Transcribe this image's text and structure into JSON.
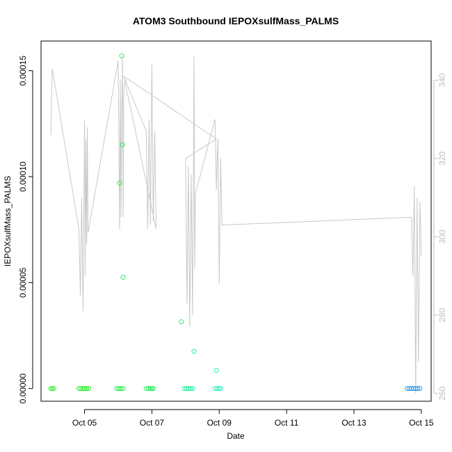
{
  "chart_data": {
    "type": "scatter",
    "title": "ATOM3 Southbound IEPOXsulfMass_PALMS",
    "xlabel": "Date",
    "ylabel": "IEPOXsulfMass_PALMS",
    "x_type": "date",
    "xlim": [
      "2017-10-03T17:00",
      "2017-10-15T07:00"
    ],
    "ylim": [
      -6e-06,
      0.000164
    ],
    "y2lim": [
      258,
      350
    ],
    "x_ticks": [
      {
        "value": "2017-10-05",
        "label": "Oct 05"
      },
      {
        "value": "2017-10-07",
        "label": "Oct 07"
      },
      {
        "value": "2017-10-09",
        "label": "Oct 09"
      },
      {
        "value": "2017-10-11",
        "label": "Oct 11"
      },
      {
        "value": "2017-10-13",
        "label": "Oct 13"
      },
      {
        "value": "2017-10-15",
        "label": "Oct 15"
      }
    ],
    "y_ticks": [
      {
        "value": 0.0,
        "label": "0.00000"
      },
      {
        "value": 5e-05,
        "label": "0.00005"
      },
      {
        "value": 0.0001,
        "label": "0.00010"
      },
      {
        "value": 0.00015,
        "label": "0.00015"
      }
    ],
    "y2_ticks": [
      {
        "value": 260,
        "label": "260"
      },
      {
        "value": 280,
        "label": "280"
      },
      {
        "value": 300,
        "label": "300"
      },
      {
        "value": 320,
        "label": "320"
      },
      {
        "value": 340,
        "label": "340"
      }
    ],
    "grid": false,
    "legend": "none",
    "colors": {
      "secondary_line": "#c8c8c8",
      "right_axis": "#bebebe",
      "axis": "#000000"
    },
    "points": [
      {
        "x": "2017-10-04T00:00",
        "y": 0.0,
        "color": "#33ee33"
      },
      {
        "x": "2017-10-04T01:00",
        "y": 0.0,
        "color": "#33ee33"
      },
      {
        "x": "2017-10-04T02:00",
        "y": 0.0,
        "color": "#33ee33"
      },
      {
        "x": "2017-10-04T20:00",
        "y": 0.0,
        "color": "#22ee22"
      },
      {
        "x": "2017-10-04T21:30",
        "y": 0.0,
        "color": "#22ee22"
      },
      {
        "x": "2017-10-04T23:00",
        "y": 0.0,
        "color": "#22ee22"
      },
      {
        "x": "2017-10-05T00:00",
        "y": 0.0,
        "color": "#22ee22"
      },
      {
        "x": "2017-10-05T01:30",
        "y": 0.0,
        "color": "#22ee22"
      },
      {
        "x": "2017-10-05T03:00",
        "y": 0.0,
        "color": "#22ee22"
      },
      {
        "x": "2017-10-05T23:00",
        "y": 0.0,
        "color": "#22ee44"
      },
      {
        "x": "2017-10-06T00:30",
        "y": 0.0,
        "color": "#22ee44"
      },
      {
        "x": "2017-10-06T02:00",
        "y": 0.0,
        "color": "#22ee44"
      },
      {
        "x": "2017-10-06T03:30",
        "y": 0.0,
        "color": "#22ee44"
      },
      {
        "x": "2017-10-06T01:00",
        "y": 9.7e-05,
        "color": "#22ee44"
      },
      {
        "x": "2017-10-06T02:30",
        "y": 0.000157,
        "color": "#22ee44"
      },
      {
        "x": "2017-10-06T03:00",
        "y": 0.000115,
        "color": "#22ee55"
      },
      {
        "x": "2017-10-06T03:30",
        "y": 5.25e-05,
        "color": "#22ee55"
      },
      {
        "x": "2017-10-06T20:00",
        "y": 0.0,
        "color": "#22ee55"
      },
      {
        "x": "2017-10-06T21:30",
        "y": 0.0,
        "color": "#22ee55"
      },
      {
        "x": "2017-10-06T23:00",
        "y": 0.0,
        "color": "#22ee55"
      },
      {
        "x": "2017-10-07T00:00",
        "y": 0.0,
        "color": "#22ee55"
      },
      {
        "x": "2017-10-07T21:00",
        "y": 3.15e-05,
        "color": "#22ee66"
      },
      {
        "x": "2017-10-07T01:00",
        "y": 0.0,
        "color": "#22ee55"
      },
      {
        "x": "2017-10-07T23:00",
        "y": 0.0,
        "color": "#22ee99"
      },
      {
        "x": "2017-10-08T00:30",
        "y": 0.0,
        "color": "#22ee99"
      },
      {
        "x": "2017-10-08T02:00",
        "y": 0.0,
        "color": "#22ee99"
      },
      {
        "x": "2017-10-08T03:30",
        "y": 0.0,
        "color": "#22ee99"
      },
      {
        "x": "2017-10-08T05:00",
        "y": 0.0,
        "color": "#22ee99"
      },
      {
        "x": "2017-10-08T06:00",
        "y": 1.75e-05,
        "color": "#22eeaa"
      },
      {
        "x": "2017-10-08T21:00",
        "y": 0.0,
        "color": "#22eebb"
      },
      {
        "x": "2017-10-08T22:30",
        "y": 0.0,
        "color": "#22eebb"
      },
      {
        "x": "2017-10-09T00:00",
        "y": 0.0,
        "color": "#22eebb"
      },
      {
        "x": "2017-10-09T01:00",
        "y": 0.0,
        "color": "#22eebb"
      },
      {
        "x": "2017-10-08T22:00",
        "y": 8.5e-06,
        "color": "#22eebb"
      },
      {
        "x": "2017-10-14T14:00",
        "y": 0.0,
        "color": "#2299ee"
      },
      {
        "x": "2017-10-14T15:30",
        "y": 0.0,
        "color": "#2299ee"
      },
      {
        "x": "2017-10-14T17:00",
        "y": 0.0,
        "color": "#2299ee"
      },
      {
        "x": "2017-10-14T18:30",
        "y": 0.0,
        "color": "#2299ee"
      },
      {
        "x": "2017-10-14T20:00",
        "y": 0.0,
        "color": "#2299ee"
      },
      {
        "x": "2017-10-14T21:30",
        "y": 0.0,
        "color": "#2299ee"
      },
      {
        "x": "2017-10-14T23:00",
        "y": 0.0,
        "color": "#2299ee"
      }
    ],
    "secondary_line": [
      [
        "2017-10-04T00:00",
        326
      ],
      [
        "2017-10-04T01:00",
        343
      ],
      [
        "2017-10-04T20:00",
        302
      ],
      [
        "2017-10-04T21:00",
        285
      ],
      [
        "2017-10-04T22:00",
        310
      ],
      [
        "2017-10-04T23:00",
        281
      ],
      [
        "2017-10-05T00:00",
        330
      ],
      [
        "2017-10-05T00:30",
        290
      ],
      [
        "2017-10-05T01:00",
        325
      ],
      [
        "2017-10-05T01:30",
        298
      ],
      [
        "2017-10-05T02:00",
        328
      ],
      [
        "2017-10-05T02:30",
        301
      ],
      [
        "2017-10-05T03:00",
        302
      ],
      [
        "2017-10-06T00:00",
        345
      ],
      [
        "2017-10-06T01:00",
        302
      ],
      [
        "2017-10-06T01:30",
        340
      ],
      [
        "2017-10-06T02:00",
        305
      ],
      [
        "2017-10-06T02:30",
        330
      ],
      [
        "2017-10-06T03:00",
        346
      ],
      [
        "2017-10-06T03:30",
        305
      ],
      [
        "2017-10-06T04:00",
        338
      ],
      [
        "2017-10-06T05:00",
        340
      ],
      [
        "2017-10-06T20:00",
        327
      ],
      [
        "2017-10-06T21:00",
        302
      ],
      [
        "2017-10-06T22:00",
        330
      ],
      [
        "2017-10-06T23:00",
        303
      ],
      [
        "2017-10-07T00:00",
        344
      ],
      [
        "2017-10-07T01:00",
        304
      ],
      [
        "2017-10-07T02:00",
        327
      ],
      [
        "2017-10-07T03:00",
        302
      ],
      [
        "2017-10-06T04:00",
        341
      ],
      [
        "2017-10-08T22:00",
        325
      ],
      [
        "2017-10-08T00:00",
        320
      ],
      [
        "2017-10-08T01:00",
        283
      ],
      [
        "2017-10-08T02:00",
        318
      ],
      [
        "2017-10-08T03:00",
        277
      ],
      [
        "2017-10-08T04:00",
        316
      ],
      [
        "2017-10-08T05:00",
        280
      ],
      [
        "2017-10-08T06:00",
        346
      ],
      [
        "2017-10-08T06:30",
        292
      ],
      [
        "2017-10-08T07:00",
        311
      ],
      [
        "2017-10-08T21:00",
        330
      ],
      [
        "2017-10-08T22:00",
        312
      ],
      [
        "2017-10-08T23:00",
        325
      ],
      [
        "2017-10-09T00:00",
        288
      ],
      [
        "2017-10-09T01:00",
        320
      ],
      [
        "2017-10-09T02:00",
        303
      ],
      [
        "2017-10-14T17:00",
        305
      ],
      [
        "2017-10-14T18:00",
        290
      ],
      [
        "2017-10-14T19:00",
        313
      ],
      [
        "2017-10-14T20:00",
        260
      ],
      [
        "2017-10-14T21:00",
        310
      ],
      [
        "2017-10-14T22:00",
        268
      ],
      [
        "2017-10-14T23:00",
        309
      ],
      [
        "2017-10-15T00:00",
        295
      ]
    ]
  }
}
